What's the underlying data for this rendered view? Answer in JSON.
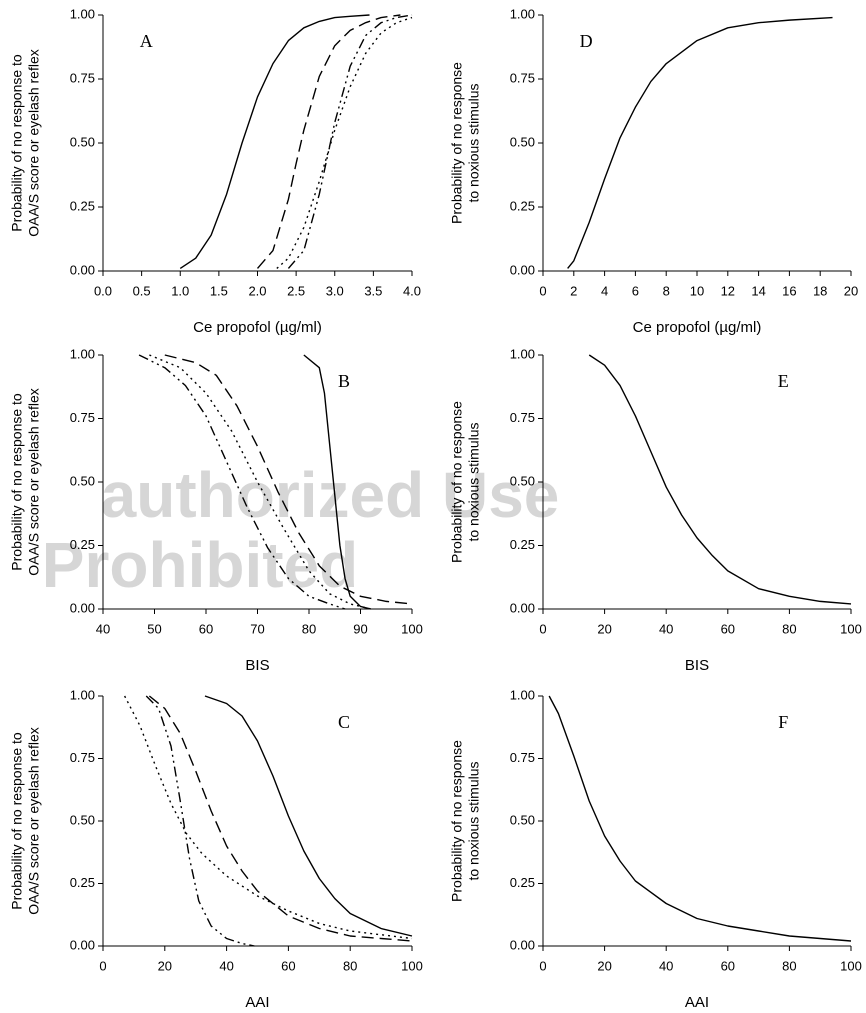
{
  "chart_data": [
    {
      "type": "line",
      "annotation": "A",
      "label_corner": "top-left",
      "ylabel": [
        "Probability of no response to",
        "OAA/S score or eyelash reflex"
      ],
      "xlabel": "Ce propofol (µg/ml)",
      "xlim": [
        0,
        4
      ],
      "xticks": [
        {
          "value": 0,
          "label": "0.0"
        },
        {
          "value": 0.5,
          "label": "0.5"
        },
        {
          "value": 1,
          "label": "1.0"
        },
        {
          "value": 1.5,
          "label": "1.5"
        },
        {
          "value": 2,
          "label": "2.0"
        },
        {
          "value": 2.5,
          "label": "2.5"
        },
        {
          "value": 3,
          "label": "3.0"
        },
        {
          "value": 3.5,
          "label": "3.5"
        },
        {
          "value": 4,
          "label": "4.0"
        }
      ],
      "ylim": [
        0,
        1
      ],
      "yticks": [
        {
          "value": 0,
          "label": "0.00"
        },
        {
          "value": 0.25,
          "label": "0.25"
        },
        {
          "value": 0.5,
          "label": "0.50"
        },
        {
          "value": 0.75,
          "label": "0.75"
        },
        {
          "value": 1,
          "label": "1.00"
        }
      ],
      "series": [
        {
          "color": "#000000",
          "dash": "solid",
          "x": [
            1.0,
            1.2,
            1.4,
            1.6,
            1.8,
            2.0,
            2.2,
            2.4,
            2.6,
            2.8,
            3.0,
            3.2,
            3.45
          ],
          "values": [
            0.01,
            0.05,
            0.14,
            0.3,
            0.5,
            0.68,
            0.81,
            0.9,
            0.95,
            0.975,
            0.99,
            0.995,
            1.0
          ]
        },
        {
          "color": "#000000",
          "dash": "dashed",
          "x": [
            2.0,
            2.2,
            2.4,
            2.5,
            2.6,
            2.8,
            3.0,
            3.2,
            3.4,
            3.6,
            3.85
          ],
          "values": [
            0.01,
            0.08,
            0.28,
            0.42,
            0.55,
            0.76,
            0.88,
            0.94,
            0.97,
            0.99,
            1.0
          ]
        },
        {
          "color": "#000000",
          "dash": "dotted",
          "x": [
            2.25,
            2.4,
            2.6,
            2.8,
            3.0,
            3.2,
            3.4,
            3.6,
            3.8,
            4.0
          ],
          "values": [
            0.01,
            0.05,
            0.17,
            0.35,
            0.55,
            0.72,
            0.85,
            0.93,
            0.97,
            0.99
          ]
        },
        {
          "color": "#000000",
          "dash": "dash-dot-dot",
          "x": [
            2.4,
            2.6,
            2.8,
            3.0,
            3.2,
            3.4,
            3.6,
            3.8,
            4.0
          ],
          "values": [
            0.01,
            0.08,
            0.3,
            0.58,
            0.8,
            0.92,
            0.97,
            0.99,
            1.0
          ]
        }
      ]
    },
    {
      "type": "line",
      "annotation": "B",
      "label_corner": "top-right",
      "ylabel": [
        "Probability of no response to",
        "OAA/S score or eyelash reflex"
      ],
      "xlabel": "BIS",
      "xlim": [
        40,
        100
      ],
      "xticks": [
        40,
        50,
        60,
        70,
        80,
        90,
        100
      ],
      "ylim": [
        0,
        1
      ],
      "yticks": [
        {
          "value": 0,
          "label": "0.00"
        },
        {
          "value": 0.25,
          "label": "0.25"
        },
        {
          "value": 0.5,
          "label": "0.50"
        },
        {
          "value": 0.75,
          "label": "0.75"
        },
        {
          "value": 1,
          "label": "1.00"
        }
      ],
      "series": [
        {
          "color": "#000000",
          "dash": "solid",
          "x": [
            79,
            82,
            83,
            84,
            85,
            86,
            87,
            88,
            90,
            92
          ],
          "values": [
            1.0,
            0.95,
            0.85,
            0.65,
            0.45,
            0.25,
            0.12,
            0.05,
            0.01,
            0.0
          ]
        },
        {
          "color": "#000000",
          "dash": "dashed",
          "x": [
            52,
            58,
            62,
            66,
            70,
            74,
            78,
            82,
            86,
            90,
            95,
            100
          ],
          "values": [
            1.0,
            0.97,
            0.92,
            0.8,
            0.64,
            0.46,
            0.3,
            0.17,
            0.09,
            0.05,
            0.03,
            0.02
          ]
        },
        {
          "color": "#000000",
          "dash": "dotted",
          "x": [
            49,
            55,
            60,
            65,
            70,
            75,
            80,
            84,
            88,
            92
          ],
          "values": [
            1.0,
            0.95,
            0.85,
            0.7,
            0.5,
            0.32,
            0.15,
            0.06,
            0.02,
            0.0
          ]
        },
        {
          "color": "#000000",
          "dash": "dash-dot-dot",
          "x": [
            47,
            52,
            56,
            60,
            64,
            68,
            72,
            76,
            80,
            84,
            87
          ],
          "values": [
            1.0,
            0.95,
            0.88,
            0.76,
            0.58,
            0.4,
            0.24,
            0.12,
            0.05,
            0.02,
            0.0
          ]
        }
      ]
    },
    {
      "type": "line",
      "annotation": "C",
      "label_corner": "top-right",
      "ylabel": [
        "Probability of no response to",
        "OAA/S score or eyelash reflex"
      ],
      "xlabel": "AAI",
      "xlim": [
        0,
        100
      ],
      "xticks": [
        0,
        20,
        40,
        60,
        80,
        100
      ],
      "ylim": [
        0,
        1
      ],
      "yticks": [
        {
          "value": 0,
          "label": "0.00"
        },
        {
          "value": 0.25,
          "label": "0.25"
        },
        {
          "value": 0.5,
          "label": "0.50"
        },
        {
          "value": 0.75,
          "label": "0.75"
        },
        {
          "value": 1,
          "label": "1.00"
        }
      ],
      "series": [
        {
          "color": "#000000",
          "dash": "solid",
          "x": [
            33,
            40,
            45,
            50,
            55,
            60,
            65,
            70,
            75,
            80,
            90,
            100
          ],
          "values": [
            1.0,
            0.97,
            0.92,
            0.82,
            0.68,
            0.52,
            0.38,
            0.27,
            0.19,
            0.13,
            0.07,
            0.04
          ]
        },
        {
          "color": "#000000",
          "dash": "dashed",
          "x": [
            15,
            20,
            25,
            30,
            35,
            40,
            45,
            50,
            60,
            70,
            80,
            100
          ],
          "values": [
            1.0,
            0.95,
            0.85,
            0.7,
            0.54,
            0.4,
            0.3,
            0.22,
            0.12,
            0.07,
            0.04,
            0.02
          ]
        },
        {
          "color": "#000000",
          "dash": "dotted",
          "x": [
            7,
            12,
            17,
            22,
            27,
            32,
            40,
            50,
            60,
            70,
            80,
            100
          ],
          "values": [
            1.0,
            0.88,
            0.72,
            0.57,
            0.45,
            0.37,
            0.28,
            0.2,
            0.14,
            0.09,
            0.06,
            0.03
          ]
        },
        {
          "color": "#000000",
          "dash": "dash-dot-dot",
          "x": [
            14,
            18,
            22,
            25,
            28,
            31,
            35,
            40,
            45,
            49
          ],
          "values": [
            1.0,
            0.95,
            0.8,
            0.58,
            0.35,
            0.18,
            0.08,
            0.03,
            0.01,
            0.0
          ]
        }
      ]
    },
    {
      "type": "line",
      "annotation": "D",
      "label_corner": "top-left",
      "ylabel": [
        "Probability of no response",
        "to noxious stimulus"
      ],
      "xlabel": "Ce propofol (µg/ml)",
      "xlim": [
        0,
        20
      ],
      "xticks": [
        0,
        2,
        4,
        6,
        8,
        10,
        12,
        14,
        16,
        18,
        20
      ],
      "ylim": [
        0,
        1
      ],
      "yticks": [
        {
          "value": 0,
          "label": "0.00"
        },
        {
          "value": 0.25,
          "label": "0.25"
        },
        {
          "value": 0.5,
          "label": "0.50"
        },
        {
          "value": 0.75,
          "label": "0.75"
        },
        {
          "value": 1,
          "label": "1.00"
        }
      ],
      "series": [
        {
          "color": "#000000",
          "dash": "solid",
          "x": [
            1.6,
            2,
            3,
            4,
            5,
            6,
            7,
            8,
            10,
            12,
            14,
            16,
            18.8
          ],
          "values": [
            0.01,
            0.04,
            0.19,
            0.36,
            0.52,
            0.64,
            0.74,
            0.81,
            0.9,
            0.95,
            0.97,
            0.98,
            0.99
          ]
        }
      ]
    },
    {
      "type": "line",
      "annotation": "E",
      "label_corner": "top-right",
      "ylabel": [
        "Probability of no response",
        "to noxious stimulus"
      ],
      "xlabel": "BIS",
      "xlim": [
        0,
        100
      ],
      "xticks": [
        0,
        20,
        40,
        60,
        80,
        100
      ],
      "ylim": [
        0,
        1
      ],
      "yticks": [
        {
          "value": 0,
          "label": "0.00"
        },
        {
          "value": 0.25,
          "label": "0.25"
        },
        {
          "value": 0.5,
          "label": "0.50"
        },
        {
          "value": 0.75,
          "label": "0.75"
        },
        {
          "value": 1,
          "label": "1.00"
        }
      ],
      "series": [
        {
          "color": "#000000",
          "dash": "solid",
          "x": [
            15,
            20,
            25,
            30,
            35,
            40,
            45,
            50,
            55,
            60,
            70,
            80,
            90,
            100
          ],
          "values": [
            1.0,
            0.96,
            0.88,
            0.76,
            0.62,
            0.48,
            0.37,
            0.28,
            0.21,
            0.15,
            0.08,
            0.05,
            0.03,
            0.02
          ]
        }
      ]
    },
    {
      "type": "line",
      "annotation": "F",
      "label_corner": "top-right",
      "ylabel": [
        "Probability of no response",
        "to noxious stimulus"
      ],
      "xlabel": "AAI",
      "xlim": [
        0,
        100
      ],
      "xticks": [
        0,
        20,
        40,
        60,
        80,
        100
      ],
      "ylim": [
        0,
        1
      ],
      "yticks": [
        {
          "value": 0,
          "label": "0.00"
        },
        {
          "value": 0.25,
          "label": "0.25"
        },
        {
          "value": 0.5,
          "label": "0.50"
        },
        {
          "value": 0.75,
          "label": "0.75"
        },
        {
          "value": 1,
          "label": "1.00"
        }
      ],
      "series": [
        {
          "color": "#000000",
          "dash": "solid",
          "x": [
            2,
            5,
            10,
            15,
            20,
            25,
            30,
            40,
            50,
            60,
            70,
            80,
            90,
            100
          ],
          "values": [
            1.0,
            0.93,
            0.76,
            0.58,
            0.44,
            0.34,
            0.26,
            0.17,
            0.11,
            0.08,
            0.06,
            0.04,
            0.03,
            0.02
          ]
        }
      ]
    }
  ],
  "watermark": [
    "authorized Use",
    "Prohibited"
  ]
}
